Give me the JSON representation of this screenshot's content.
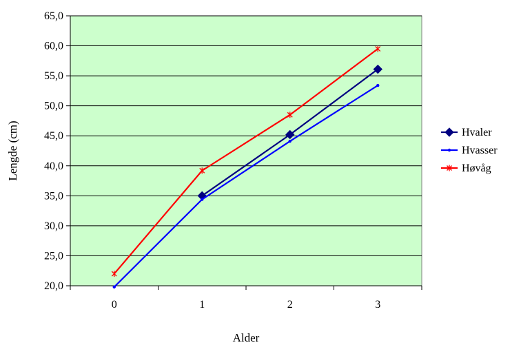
{
  "chart_data": {
    "type": "line",
    "title": "",
    "xlabel": "Alder",
    "ylabel": "Lengde (cm)",
    "categories": [
      "0",
      "1",
      "2",
      "3"
    ],
    "ylim": [
      20,
      65
    ],
    "yticks": [
      "20,0",
      "25,0",
      "30,0",
      "35,0",
      "40,0",
      "45,0",
      "50,0",
      "55,0",
      "60,0",
      "65,0"
    ],
    "grid": true,
    "legend_position": "right",
    "plot_background": "#ccffcc",
    "series": [
      {
        "name": "Hvaler",
        "values": [
          null,
          35.0,
          45.2,
          56.1
        ],
        "color": "#000080",
        "marker": "diamond"
      },
      {
        "name": "Hvasser",
        "values": [
          19.8,
          34.4,
          44.1,
          53.4
        ],
        "color": "#0000ff",
        "marker": "dot"
      },
      {
        "name": "Høvåg",
        "values": [
          22.0,
          39.2,
          48.5,
          59.5
        ],
        "color": "#ff0000",
        "marker": "star"
      }
    ]
  }
}
